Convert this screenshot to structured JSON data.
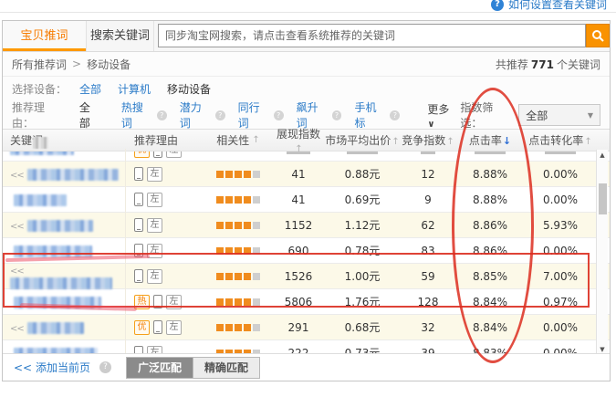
{
  "help_link": {
    "label": "如何设置查看关键词",
    "icon": "?"
  },
  "tabs": [
    {
      "label": "宝贝推词",
      "active": true
    },
    {
      "label": "搜索关键词",
      "active": false
    }
  ],
  "search": {
    "placeholder": "同步淘宝网搜索，请点击查看系统推荐的关键词",
    "value": ""
  },
  "breadcrumb": {
    "parent": "所有推荐词",
    "separator": ">",
    "current": "移动设备"
  },
  "summary": {
    "prefix": "共推荐",
    "count": "771",
    "suffix": "个关键词"
  },
  "device_filter": {
    "label": "选择设备：",
    "options": [
      {
        "label": "全部",
        "selected": false
      },
      {
        "label": "计算机",
        "selected": false
      },
      {
        "label": "移动设备",
        "selected": true
      }
    ]
  },
  "reason_filter": {
    "label": "推荐理由：",
    "all_label": "全部",
    "options": [
      {
        "label": "热搜词"
      },
      {
        "label": "潜力词"
      },
      {
        "label": "同行词"
      },
      {
        "label": "飙升词"
      },
      {
        "label": "手机标"
      }
    ],
    "more_label": "更多"
  },
  "index_filter": {
    "label": "指数筛选：",
    "value": "全部"
  },
  "icons": {
    "sort_asc": "↑",
    "sort_desc": "↓",
    "caret_down": "▼",
    "chevron_down": "∨",
    "question": "?",
    "scroll_up": "▲",
    "scroll_down": "▼",
    "chevrons_left": "<<"
  },
  "badge_labels": {
    "hot": "热",
    "premium": "优",
    "left": "左"
  },
  "table": {
    "columns": [
      {
        "label": "关键词",
        "sort": ""
      },
      {
        "label": "推荐理由",
        "sort": ""
      },
      {
        "label": "相关性",
        "sort": "asc"
      },
      {
        "label": "展现指数",
        "sort": "asc"
      },
      {
        "label": "市场平均出价",
        "sort": "asc"
      },
      {
        "label": "竞争指数",
        "sort": "asc"
      },
      {
        "label": "点击率",
        "sort": "desc"
      },
      {
        "label": "点击转化率",
        "sort": "asc"
      }
    ],
    "rows": [
      {
        "prefix": "<<",
        "keyword_redacted": true,
        "kw_width": 100,
        "badges": [
          "phone",
          "left"
        ],
        "relevance": 4,
        "impressions": "41",
        "price": "0.88元",
        "competition": "12",
        "ctr": "8.88%",
        "cvr": "0.00%",
        "highlighted": false
      },
      {
        "prefix": "",
        "keyword_redacted": true,
        "kw_width": 58,
        "badges": [
          "phone",
          "left"
        ],
        "relevance": 4,
        "impressions": "41",
        "price": "0.69元",
        "competition": "9",
        "ctr": "8.88%",
        "cvr": "0.00%",
        "highlighted": false
      },
      {
        "prefix": "<<",
        "keyword_redacted": true,
        "kw_width": 72,
        "badges": [
          "phone",
          "left"
        ],
        "relevance": 4,
        "impressions": "1152",
        "price": "1.12元",
        "competition": "62",
        "ctr": "8.86%",
        "cvr": "5.93%",
        "highlighted": false
      },
      {
        "prefix": "",
        "keyword_redacted": true,
        "kw_width": 86,
        "badges": [
          "phone",
          "left"
        ],
        "relevance": 4,
        "impressions": "690",
        "price": "0.78元",
        "competition": "83",
        "ctr": "8.86%",
        "cvr": "0.00%",
        "highlighted": false
      },
      {
        "prefix": "<<",
        "keyword_redacted": true,
        "kw_width": 112,
        "badges": [
          "phone",
          "left"
        ],
        "relevance": 4,
        "impressions": "1526",
        "price": "1.00元",
        "competition": "59",
        "ctr": "8.85%",
        "cvr": "7.00%",
        "highlighted": true
      },
      {
        "prefix": "",
        "keyword_redacted": true,
        "kw_width": 96,
        "badges": [
          "hot",
          "phone",
          "left"
        ],
        "relevance": 4,
        "impressions": "5806",
        "price": "1.76元",
        "competition": "128",
        "ctr": "8.84%",
        "cvr": "0.97%",
        "highlighted": true
      },
      {
        "prefix": "<<",
        "keyword_redacted": true,
        "kw_width": 62,
        "badges": [
          "premium",
          "phone",
          "left"
        ],
        "relevance": 4,
        "impressions": "291",
        "price": "0.68元",
        "competition": "32",
        "ctr": "8.84%",
        "cvr": "0.00%",
        "highlighted": false
      },
      {
        "prefix": "",
        "keyword_redacted": true,
        "kw_width": 92,
        "badges": [
          "phone",
          "left"
        ],
        "relevance": 4,
        "impressions": "222",
        "price": "0.73元",
        "competition": "39",
        "ctr": "8.83%",
        "cvr": "0.00%",
        "highlighted": false
      }
    ]
  },
  "footer": {
    "add_prefix": "<<",
    "add_label": "添加当前页",
    "broad_match_label": "广泛匹配",
    "exact_match_label": "精确匹配"
  },
  "colors": {
    "accent_orange": "#ff8800",
    "link_blue": "#2b7bc8",
    "annotation_red": "#dc2e20",
    "row_alt_yellow": "#fcf9e8",
    "relevance_bar_orange": "#f08c1e",
    "broad_button_gray": "#8b8b8b"
  }
}
